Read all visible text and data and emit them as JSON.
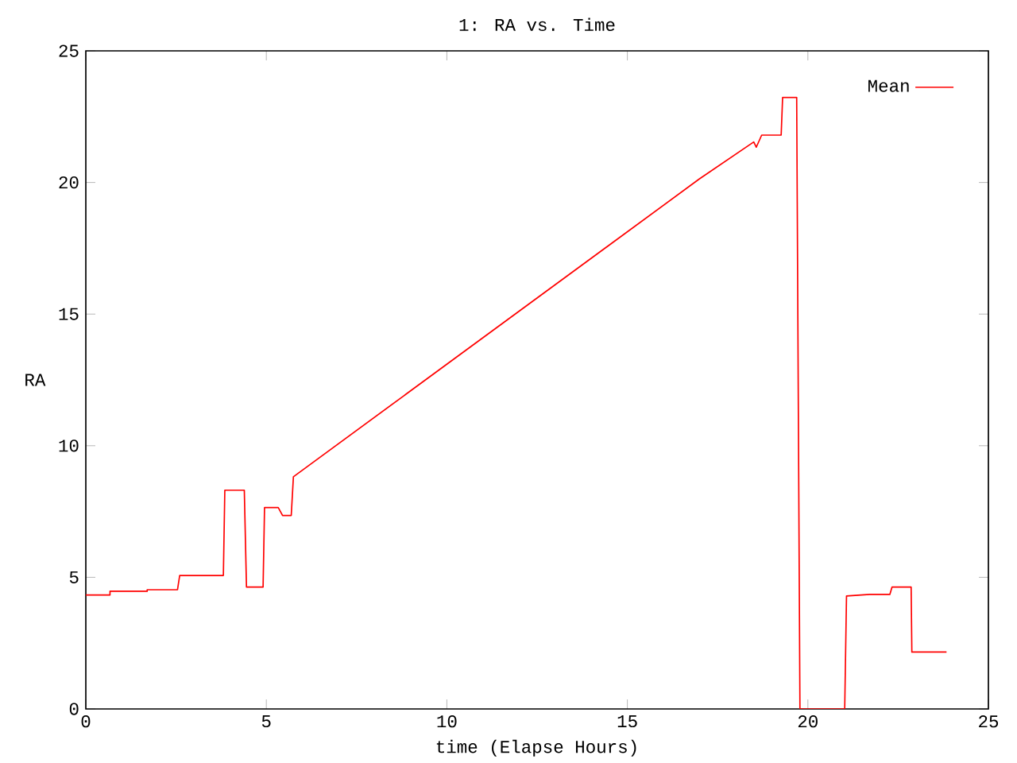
{
  "chart_data": {
    "type": "line",
    "title": "1: RA vs. Time",
    "xlabel": "time (Elapse Hours)",
    "ylabel": "RA",
    "xlim": [
      0,
      25
    ],
    "ylim": [
      0,
      25
    ],
    "xticks": [
      0,
      5,
      10,
      15,
      20,
      25
    ],
    "yticks": [
      0,
      5,
      10,
      15,
      20,
      25
    ],
    "grid": false,
    "legend": "top right",
    "marker": "none",
    "line_style": "solid",
    "series": [
      {
        "name": "Mean",
        "color": "#ff0000",
        "x": [
          0,
          0.67,
          0.67,
          1.7,
          1.7,
          2.54,
          2.6,
          3.81,
          3.85,
          4.39,
          4.45,
          4.91,
          4.95,
          5.33,
          5.45,
          5.69,
          5.75,
          16.99,
          18.5,
          18.57,
          18.72,
          19.26,
          19.3,
          19.69,
          19.78,
          21.02,
          21.07,
          21.71,
          22.27,
          22.33,
          22.86,
          22.88,
          23.84
        ],
        "values": [
          4.33,
          4.33,
          4.47,
          4.47,
          4.53,
          4.53,
          5.07,
          5.07,
          8.31,
          8.31,
          4.63,
          4.63,
          7.65,
          7.65,
          7.35,
          7.35,
          8.82,
          20.13,
          21.54,
          21.34,
          21.8,
          21.8,
          23.23,
          23.23,
          0,
          0,
          4.29,
          4.35,
          4.35,
          4.63,
          4.63,
          2.16,
          2.16
        ]
      }
    ]
  }
}
